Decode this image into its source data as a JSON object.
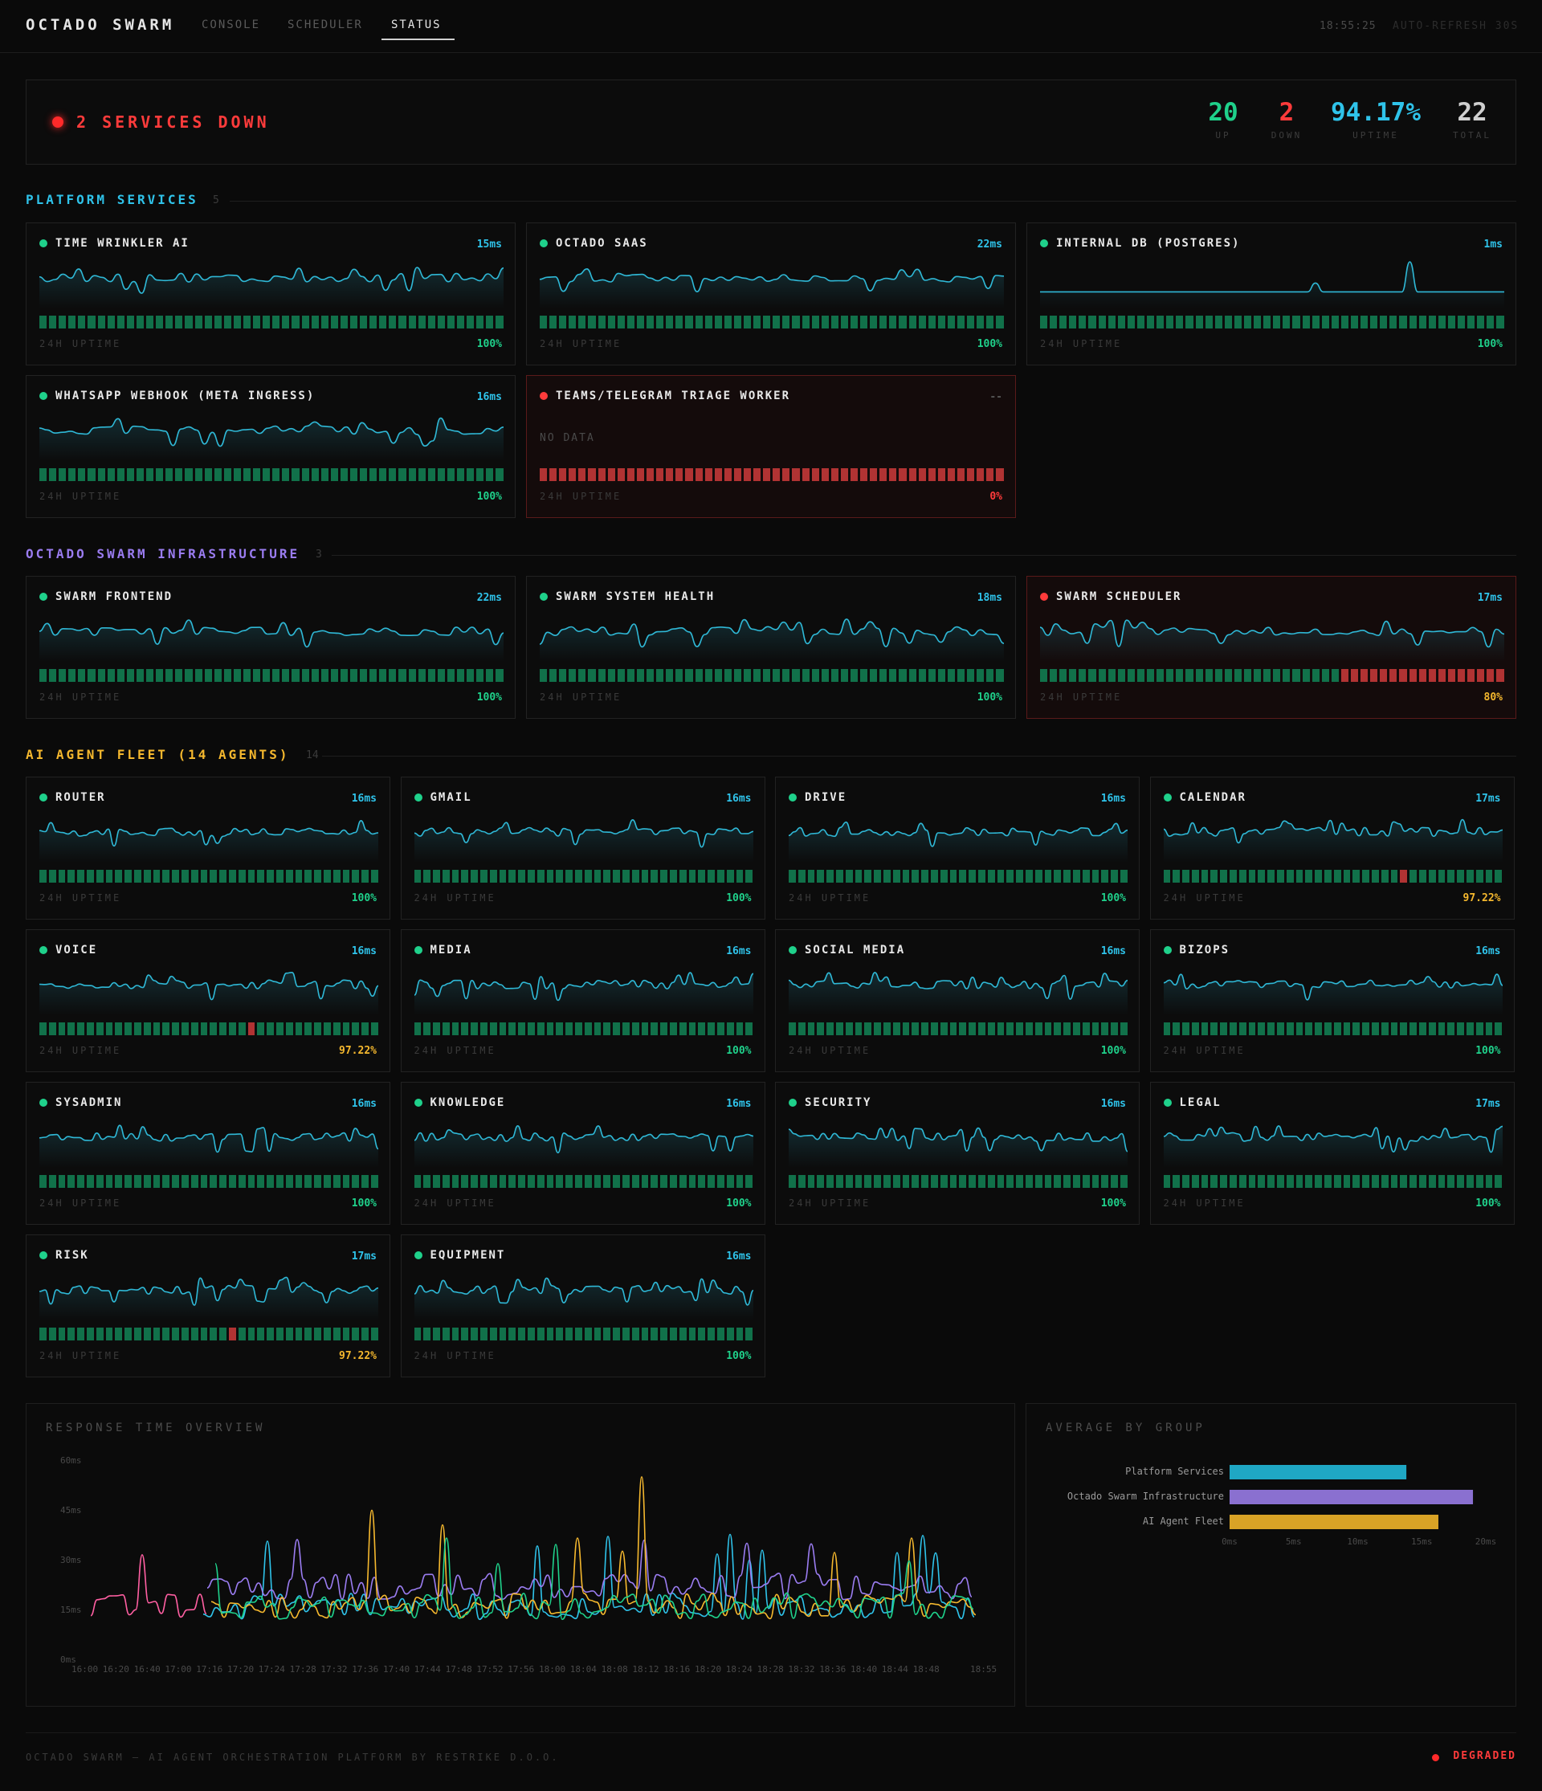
{
  "header": {
    "brand": "OCTADO SWARM",
    "tabs": [
      {
        "label": "CONSOLE",
        "active": false
      },
      {
        "label": "SCHEDULER",
        "active": false
      },
      {
        "label": "STATUS",
        "active": true
      }
    ],
    "clock": "18:55:25",
    "refresh": "AUTO-REFRESH 30S"
  },
  "banner": {
    "message": "2 SERVICES DOWN",
    "stats": [
      {
        "value": "20",
        "label": "UP",
        "color": "#1fd18b"
      },
      {
        "value": "2",
        "label": "DOWN",
        "color": "#ff3b3b"
      },
      {
        "value": "94.17%",
        "label": "UPTIME",
        "color": "#2fc3ea"
      },
      {
        "value": "22",
        "label": "TOTAL",
        "color": "#cfcfcf"
      }
    ]
  },
  "colors": {
    "up": "#1fd18b",
    "down": "#ff3b3b",
    "warn": "#f5b82e",
    "spark": "#2fb8d6",
    "bar_up": "#11714a",
    "bar_down": "#b13333"
  },
  "uptime_label": "24H UPTIME",
  "sections": [
    {
      "title": "PLATFORM SERVICES",
      "count": "5",
      "color": "#2fc3ea",
      "services": [
        {
          "name": "TIME WRINKLER AI",
          "ms": "15ms",
          "status": "up",
          "uptime": "100%",
          "down_bars": []
        },
        {
          "name": "OCTADO SAAS",
          "ms": "22ms",
          "status": "up",
          "uptime": "100%",
          "down_bars": []
        },
        {
          "name": "INTERNAL DB (POSTGRES)",
          "ms": "1ms",
          "status": "up",
          "uptime": "100%",
          "down_bars": []
        },
        {
          "name": "WHATSAPP WEBHOOK (META INGRESS)",
          "ms": "16ms",
          "status": "up",
          "uptime": "100%",
          "down_bars": []
        },
        {
          "name": "TEAMS/TELEGRAM TRIAGE WORKER",
          "ms": "--",
          "status": "down",
          "uptime": "0%",
          "nodata": "NO DATA",
          "down_bars": "all"
        }
      ]
    },
    {
      "title": "OCTADO SWARM INFRASTRUCTURE",
      "count": "3",
      "color": "#9a7cf0",
      "services": [
        {
          "name": "SWARM FRONTEND",
          "ms": "22ms",
          "status": "up",
          "uptime": "100%",
          "down_bars": []
        },
        {
          "name": "SWARM SYSTEM HEALTH",
          "ms": "18ms",
          "status": "up",
          "uptime": "100%",
          "down_bars": []
        },
        {
          "name": "SWARM SCHEDULER",
          "ms": "17ms",
          "status": "down",
          "uptime": "80%",
          "down_bars": "tail"
        }
      ]
    },
    {
      "title": "AI AGENT FLEET (14 AGENTS)",
      "count": "14",
      "color": "#f5b82e",
      "services": [
        {
          "name": "ROUTER",
          "ms": "16ms",
          "status": "up",
          "uptime": "100%",
          "down_bars": []
        },
        {
          "name": "GMAIL",
          "ms": "16ms",
          "status": "up",
          "uptime": "100%",
          "down_bars": []
        },
        {
          "name": "DRIVE",
          "ms": "16ms",
          "status": "up",
          "uptime": "100%",
          "down_bars": []
        },
        {
          "name": "CALENDAR",
          "ms": "17ms",
          "status": "up",
          "uptime": "97.22%",
          "down_bars": [
            25
          ]
        },
        {
          "name": "VOICE",
          "ms": "16ms",
          "status": "up",
          "uptime": "97.22%",
          "down_bars": [
            22
          ]
        },
        {
          "name": "MEDIA",
          "ms": "16ms",
          "status": "up",
          "uptime": "100%",
          "down_bars": []
        },
        {
          "name": "SOCIAL MEDIA",
          "ms": "16ms",
          "status": "up",
          "uptime": "100%",
          "down_bars": []
        },
        {
          "name": "BIZOPS",
          "ms": "16ms",
          "status": "up",
          "uptime": "100%",
          "down_bars": []
        },
        {
          "name": "SYSADMIN",
          "ms": "16ms",
          "status": "up",
          "uptime": "100%",
          "down_bars": []
        },
        {
          "name": "KNOWLEDGE",
          "ms": "16ms",
          "status": "up",
          "uptime": "100%",
          "down_bars": []
        },
        {
          "name": "SECURITY",
          "ms": "16ms",
          "status": "up",
          "uptime": "100%",
          "down_bars": []
        },
        {
          "name": "LEGAL",
          "ms": "17ms",
          "status": "up",
          "uptime": "100%",
          "down_bars": []
        },
        {
          "name": "RISK",
          "ms": "17ms",
          "status": "up",
          "uptime": "97.22%",
          "down_bars": [
            20
          ]
        },
        {
          "name": "EQUIPMENT",
          "ms": "16ms",
          "status": "up",
          "uptime": "100%",
          "down_bars": []
        }
      ]
    }
  ],
  "chart_data": [
    {
      "type": "line",
      "title": "RESPONSE TIME OVERVIEW",
      "y_ticks": [
        "60ms",
        "45ms",
        "30ms",
        "15ms",
        "0ms"
      ],
      "ylim": [
        0,
        60
      ],
      "x_ticks": [
        "16:00",
        "16:20",
        "16:40",
        "17:00",
        "17:16",
        "17:20",
        "17:24",
        "17:28",
        "17:32",
        "17:36",
        "17:40",
        "17:44",
        "17:48",
        "17:52",
        "17:56",
        "18:00",
        "18:04",
        "18:08",
        "18:12",
        "18:16",
        "18:20",
        "18:24",
        "18:28",
        "18:32",
        "18:36",
        "18:40",
        "18:44",
        "18:48",
        "18:55"
      ],
      "series_colors": [
        "#2fc3ea",
        "#9a7cf0",
        "#f5b82e",
        "#1fd18b",
        "#ff5fa2"
      ],
      "grid": false
    },
    {
      "type": "bar",
      "title": "AVERAGE BY GROUP",
      "categories": [
        "Platform Services",
        "Octado Swarm Infrastructure",
        "AI Agent Fleet"
      ],
      "values": [
        13.8,
        19.0,
        16.3
      ],
      "colors": [
        "#1fa7c4",
        "#8a70d0",
        "#d9a326"
      ],
      "x_ticks": [
        "0ms",
        "5ms",
        "10ms",
        "15ms",
        "20ms"
      ],
      "xlim": [
        0,
        20
      ]
    }
  ],
  "footer": {
    "text": "OCTADO SWARM — AI AGENT ORCHESTRATION PLATFORM BY RESTRIKE D.O.O.",
    "status": "DEGRADED"
  }
}
